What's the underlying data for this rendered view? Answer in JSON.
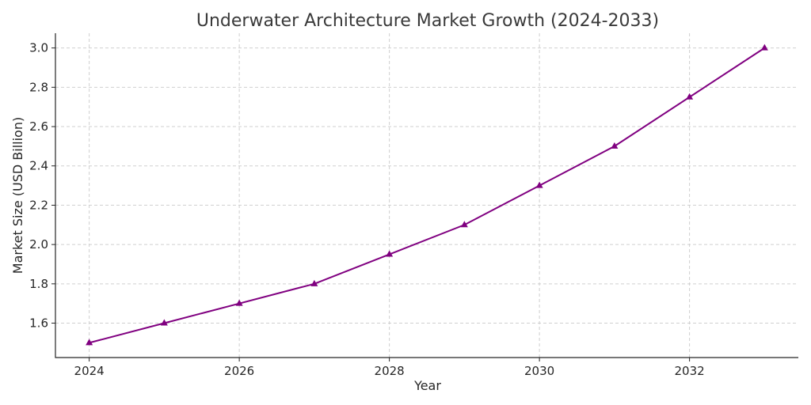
{
  "chart_data": {
    "type": "line",
    "title": "Underwater Architecture Market Growth (2024-2033)",
    "xlabel": "Year",
    "ylabel": "Market Size (USD Billion)",
    "x": [
      2024,
      2025,
      2026,
      2027,
      2028,
      2029,
      2030,
      2031,
      2032,
      2033
    ],
    "series": [
      {
        "values": [
          1.5,
          1.6,
          1.7,
          1.8,
          1.95,
          2.1,
          2.3,
          2.5,
          2.75,
          3.0
        ],
        "color": "#800080",
        "marker": "triangle-up"
      }
    ],
    "x_ticks": [
      "2024",
      "2026",
      "2028",
      "2030",
      "2032"
    ],
    "y_ticks": [
      "1.6",
      "1.8",
      "2.0",
      "2.2",
      "2.4",
      "2.6",
      "2.8",
      "3.0"
    ],
    "xlim": [
      2023.55,
      2033.45
    ],
    "ylim": [
      1.425,
      3.075
    ],
    "grid": true,
    "legend": false
  }
}
